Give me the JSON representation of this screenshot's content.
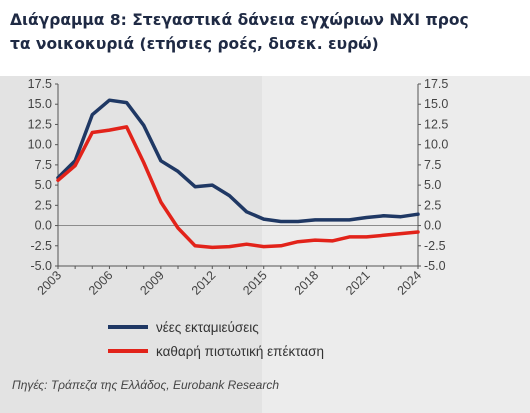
{
  "title": "Διάγραμμα 8: Στεγαστικά δάνεια εγχώριων ΝΧΙ προς τα νοικοκυριά (ετήσιες ροές, δισεκ. ευρώ)",
  "source": "Πηγές: Τράπεζα της Ελλάδος, Eurobank Research",
  "colors": {
    "panel_left": "#e3e3e3",
    "panel_right": "#ececec"
  },
  "chart_data": {
    "type": "line",
    "x": [
      2003,
      2004,
      2005,
      2006,
      2007,
      2008,
      2009,
      2010,
      2011,
      2012,
      2013,
      2014,
      2015,
      2016,
      2017,
      2018,
      2019,
      2020,
      2021,
      2022,
      2023,
      2024
    ],
    "x_tick_labels": [
      "2003",
      "2006",
      "2009",
      "2012",
      "2015",
      "2018",
      "2021",
      "2024"
    ],
    "y_ticks": [
      "17.5",
      "15.0",
      "12.5",
      "10.0",
      "7.5",
      "5.0",
      "2.5",
      "0.0",
      "-2.5",
      "-5.0"
    ],
    "ylim": [
      -5,
      17.5
    ],
    "y2lim": [
      -5,
      17.5
    ],
    "series": [
      {
        "name": "νέες εκταμιεύσεις",
        "color": "#1f3864",
        "values": [
          5.9,
          8.0,
          13.7,
          15.5,
          15.2,
          12.4,
          8.0,
          6.7,
          4.8,
          5.0,
          3.7,
          1.7,
          0.8,
          0.5,
          0.5,
          0.7,
          0.7,
          0.7,
          1.0,
          1.2,
          1.1,
          1.4
        ]
      },
      {
        "name": "καθαρή πιστωτική επέκταση",
        "color": "#e2231a",
        "values": [
          5.6,
          7.4,
          11.5,
          11.8,
          12.2,
          7.8,
          2.9,
          -0.3,
          -2.5,
          -2.7,
          -2.6,
          -2.3,
          -2.6,
          -2.5,
          -2.0,
          -1.8,
          -1.9,
          -1.4,
          -1.4,
          -1.2,
          -1.0,
          -0.8
        ]
      }
    ]
  }
}
